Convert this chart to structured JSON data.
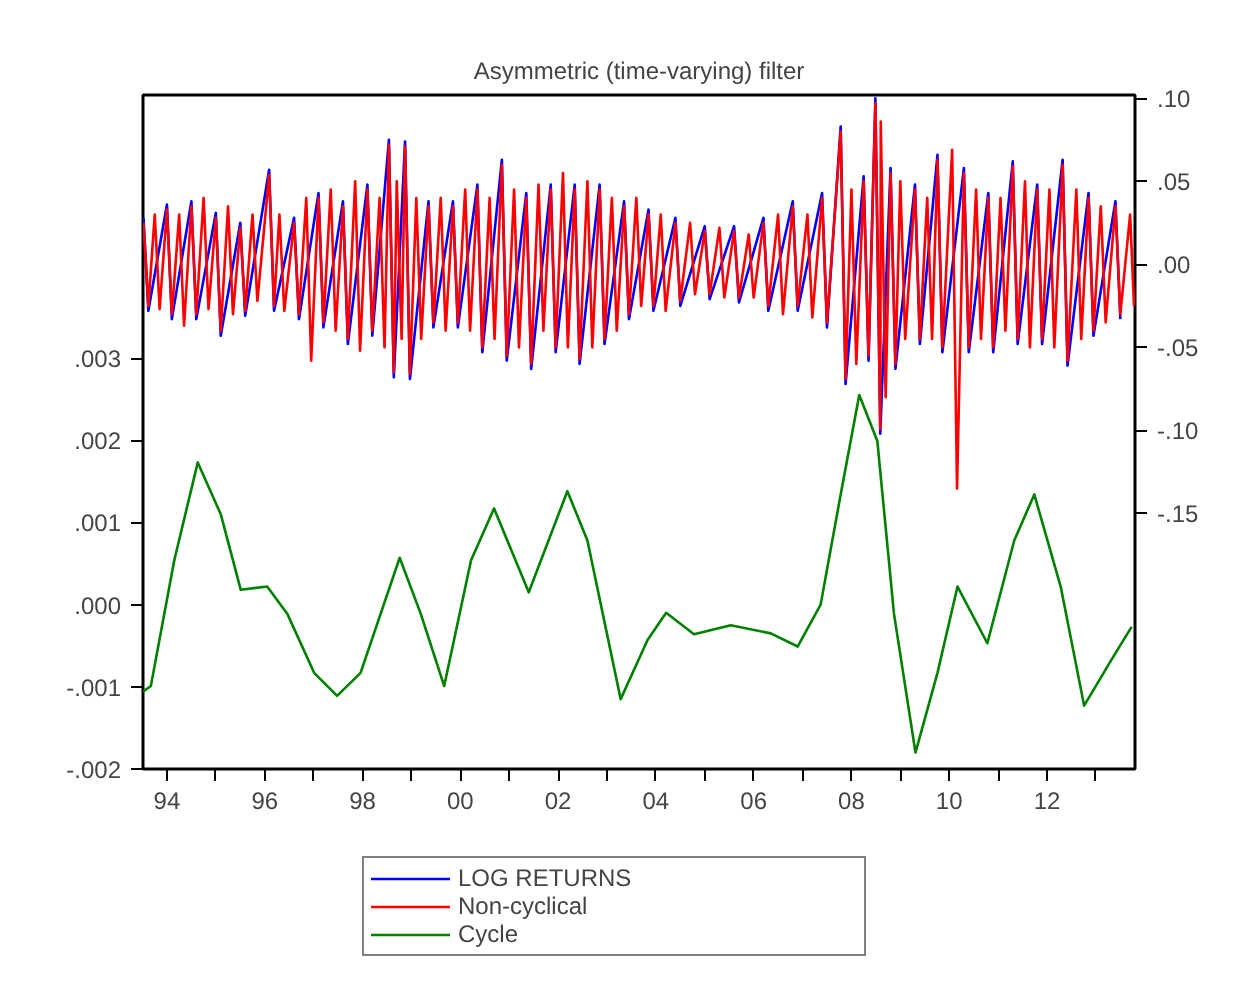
{
  "chart_data": {
    "type": "line",
    "title": "Asymmetric (time-varying) filter",
    "xlim": [
      1993.51,
      2013.8
    ],
    "xticks": [
      {
        "value": 1994,
        "label": "94"
      },
      {
        "value": 1995,
        "label": null
      },
      {
        "value": 1996,
        "label": "96"
      },
      {
        "value": 1997,
        "label": null
      },
      {
        "value": 1998,
        "label": "98"
      },
      {
        "value": 1999,
        "label": null
      },
      {
        "value": 2000,
        "label": "00"
      },
      {
        "value": 2001,
        "label": null
      },
      {
        "value": 2002,
        "label": "02"
      },
      {
        "value": 2003,
        "label": null
      },
      {
        "value": 2004,
        "label": "04"
      },
      {
        "value": 2005,
        "label": null
      },
      {
        "value": 2006,
        "label": "06"
      },
      {
        "value": 2007,
        "label": null
      },
      {
        "value": 2008,
        "label": "08"
      },
      {
        "value": 2009,
        "label": null
      },
      {
        "value": 2010,
        "label": "10"
      },
      {
        "value": 2011,
        "label": null
      },
      {
        "value": 2012,
        "label": "12"
      },
      {
        "value": 2013,
        "label": null
      }
    ],
    "ylim": [
      -0.002,
      0.0062
    ],
    "yticks": [
      {
        "value": 0.003,
        "label": ".003"
      },
      {
        "value": 0.002,
        "label": ".002"
      },
      {
        "value": 0.001,
        "label": ".001"
      },
      {
        "value": 0,
        "label": ".000"
      },
      {
        "value": -0.001,
        "label": "-.001"
      },
      {
        "value": -0.002,
        "label": "-.002"
      }
    ],
    "y2lim": [
      -0.304,
      0.102
    ],
    "y2ticks": [
      {
        "value": 0.1,
        "label": ".10"
      },
      {
        "value": 0.05,
        "label": ".05"
      },
      {
        "value": 0,
        "label": ".00"
      },
      {
        "value": -0.05,
        "label": "-.05"
      },
      {
        "value": -0.1,
        "label": "-.10"
      },
      {
        "value": -0.15,
        "label": "-.15"
      }
    ],
    "grid": false,
    "legend": "bottom",
    "line_style": "solid",
    "series": [
      {
        "name": "LOG RETURNS",
        "color": "#0000ff",
        "axis": "y2",
        "x": [
          1993.52,
          1993.62,
          1994.0,
          1994.1,
          1994.5,
          1994.6,
          1995.0,
          1995.1,
          1995.5,
          1995.6,
          1996.09,
          1996.19,
          1996.6,
          1996.7,
          1997.1,
          1997.2,
          1997.6,
          1997.7,
          1998.1,
          1998.2,
          1998.54,
          1998.64,
          1998.87,
          1998.97,
          1999.35,
          1999.45,
          1999.85,
          1999.95,
          2000.35,
          2000.45,
          2000.85,
          2000.95,
          2001.35,
          2001.45,
          2001.85,
          2001.95,
          2002.34,
          2002.44,
          2002.85,
          2002.95,
          2003.35,
          2003.45,
          2003.85,
          2003.95,
          2004.4,
          2004.5,
          2005.0,
          2005.1,
          2005.6,
          2005.7,
          2006.2,
          2006.3,
          2006.8,
          2006.9,
          2007.4,
          2007.5,
          2007.78,
          2007.88,
          2008.25,
          2008.35,
          2008.49,
          2008.59,
          2008.8,
          2008.9,
          2009.3,
          2009.4,
          2009.76,
          2009.86,
          2010.3,
          2010.4,
          2010.8,
          2010.9,
          2011.3,
          2011.4,
          2011.8,
          2011.9,
          2012.32,
          2012.42,
          2012.85,
          2012.95,
          2013.4,
          2013.5
        ],
        "values": [
          0.028,
          -0.028,
          0.036,
          -0.033,
          0.038,
          -0.033,
          0.031,
          -0.043,
          0.025,
          -0.031,
          0.057,
          -0.028,
          0.028,
          -0.033,
          0.043,
          -0.038,
          0.038,
          -0.048,
          0.048,
          -0.043,
          0.075,
          -0.068,
          0.074,
          -0.069,
          0.038,
          -0.038,
          0.038,
          -0.038,
          0.048,
          -0.053,
          0.063,
          -0.058,
          0.043,
          -0.063,
          0.048,
          -0.053,
          0.048,
          -0.06,
          0.048,
          -0.048,
          0.038,
          -0.033,
          0.033,
          -0.028,
          0.028,
          -0.025,
          0.023,
          -0.021,
          0.023,
          -0.023,
          0.028,
          -0.028,
          0.038,
          -0.028,
          0.043,
          -0.038,
          0.083,
          -0.072,
          0.053,
          -0.058,
          0.1,
          -0.102,
          0.058,
          -0.063,
          0.048,
          -0.048,
          0.066,
          -0.053,
          0.058,
          -0.053,
          0.043,
          -0.053,
          0.062,
          -0.048,
          0.048,
          -0.048,
          0.063,
          -0.061,
          0.043,
          -0.043,
          0.038,
          -0.033
        ]
      },
      {
        "name": "Non-cyclical",
        "color": "#ff0000",
        "axis": "y2",
        "x": [
          1993.52,
          1993.62,
          1993.75,
          1993.85,
          1994.0,
          1994.1,
          1994.25,
          1994.35,
          1994.5,
          1994.6,
          1994.75,
          1994.85,
          1995.0,
          1995.1,
          1995.25,
          1995.35,
          1995.5,
          1995.6,
          1995.75,
          1995.85,
          1996.09,
          1996.19,
          1996.3,
          1996.4,
          1996.6,
          1996.7,
          1996.85,
          1996.95,
          1997.1,
          1997.2,
          1997.35,
          1997.45,
          1997.6,
          1997.7,
          1997.85,
          1997.95,
          1998.1,
          1998.2,
          1998.35,
          1998.45,
          1998.54,
          1998.64,
          1998.7,
          1998.8,
          1998.87,
          1998.97,
          1999.1,
          1999.2,
          1999.35,
          1999.45,
          1999.6,
          1999.7,
          1999.85,
          1999.95,
          2000.1,
          2000.2,
          2000.35,
          2000.45,
          2000.6,
          2000.7,
          2000.85,
          2000.95,
          2001.1,
          2001.2,
          2001.35,
          2001.45,
          2001.6,
          2001.7,
          2001.85,
          2001.95,
          2002.1,
          2002.2,
          2002.34,
          2002.44,
          2002.6,
          2002.7,
          2002.85,
          2002.95,
          2003.1,
          2003.2,
          2003.35,
          2003.45,
          2003.6,
          2003.7,
          2003.85,
          2003.95,
          2004.1,
          2004.2,
          2004.4,
          2004.5,
          2004.7,
          2004.8,
          2005.0,
          2005.1,
          2005.3,
          2005.4,
          2005.6,
          2005.7,
          2005.9,
          2006.0,
          2006.2,
          2006.3,
          2006.5,
          2006.6,
          2006.8,
          2006.9,
          2007.1,
          2007.2,
          2007.4,
          2007.5,
          2007.78,
          2007.88,
          2008.0,
          2008.1,
          2008.25,
          2008.35,
          2008.49,
          2008.59,
          2008.6,
          2008.7,
          2008.8,
          2008.9,
          2009.0,
          2009.1,
          2009.3,
          2009.4,
          2009.55,
          2009.65,
          2009.76,
          2009.86,
          2010.06,
          2010.16,
          2010.3,
          2010.4,
          2010.55,
          2010.65,
          2010.8,
          2010.9,
          2011.05,
          2011.15,
          2011.3,
          2011.4,
          2011.55,
          2011.65,
          2011.8,
          2011.9,
          2012.05,
          2012.15,
          2012.32,
          2012.42,
          2012.6,
          2012.7,
          2012.85,
          2012.95,
          2013.1,
          2013.2,
          2013.4,
          2013.5,
          2013.7,
          2013.78
        ],
        "values": [
          0.025,
          -0.025,
          0.03,
          -0.027,
          0.033,
          -0.03,
          0.03,
          -0.037,
          0.035,
          -0.03,
          0.04,
          -0.027,
          0.028,
          -0.04,
          0.035,
          -0.03,
          0.022,
          -0.028,
          0.03,
          -0.022,
          0.054,
          -0.025,
          0.03,
          -0.028,
          0.025,
          -0.03,
          0.04,
          -0.058,
          0.04,
          -0.035,
          0.045,
          -0.04,
          0.035,
          -0.045,
          0.05,
          -0.052,
          0.045,
          -0.04,
          0.04,
          -0.05,
          0.072,
          -0.065,
          0.05,
          -0.045,
          0.071,
          -0.066,
          0.04,
          -0.045,
          0.035,
          -0.035,
          0.04,
          -0.04,
          0.035,
          -0.035,
          0.045,
          -0.04,
          0.045,
          -0.05,
          0.04,
          -0.045,
          0.06,
          -0.055,
          0.045,
          -0.05,
          0.04,
          -0.06,
          0.048,
          -0.04,
          0.045,
          -0.05,
          0.055,
          -0.05,
          0.045,
          -0.057,
          0.05,
          -0.05,
          0.045,
          -0.045,
          0.04,
          -0.04,
          0.035,
          -0.03,
          0.04,
          -0.025,
          0.03,
          -0.025,
          0.03,
          -0.028,
          0.025,
          -0.022,
          0.025,
          -0.018,
          0.02,
          -0.018,
          0.022,
          -0.02,
          0.02,
          -0.02,
          0.018,
          -0.02,
          0.025,
          -0.025,
          0.03,
          -0.03,
          0.035,
          -0.025,
          0.03,
          -0.032,
          0.04,
          -0.035,
          0.08,
          -0.069,
          0.045,
          -0.06,
          0.05,
          -0.055,
          0.097,
          -0.099,
          0.086,
          -0.08,
          0.055,
          -0.06,
          0.05,
          -0.045,
          0.045,
          -0.045,
          0.04,
          -0.045,
          0.063,
          -0.05,
          0.069,
          -0.135,
          0.055,
          -0.05,
          0.045,
          -0.045,
          0.04,
          -0.05,
          0.04,
          -0.04,
          0.059,
          -0.045,
          0.05,
          -0.05,
          0.045,
          -0.045,
          0.045,
          -0.05,
          0.06,
          -0.058,
          0.045,
          -0.045,
          0.04,
          -0.04,
          0.035,
          -0.035,
          0.035,
          -0.03,
          0.03,
          -0.025
        ]
      },
      {
        "name": "Cycle",
        "color": "#008000",
        "x": [
          1993.51,
          1993.67,
          1994.15,
          1994.63,
          1995.1,
          1995.51,
          1996.05,
          1996.46,
          1997.01,
          1997.48,
          1997.96,
          1998.76,
          1999.19,
          1999.67,
          2000.22,
          2000.69,
          2001.4,
          2002.19,
          2002.6,
          2003.28,
          2003.83,
          2004.21,
          2004.78,
          2005.53,
          2006.35,
          2006.9,
          2007.37,
          2007.78,
          2008.16,
          2008.53,
          2008.87,
          2009.31,
          2009.76,
          2010.17,
          2010.78,
          2011.33,
          2011.74,
          2012.28,
          2012.76,
          2013.32,
          2013.73
        ],
        "values": [
          -0.00106,
          -0.00099,
          0.00054,
          0.00173,
          0.0011,
          0.00018,
          0.00022,
          -0.00011,
          -0.00083,
          -0.00111,
          -0.00083,
          0.00057,
          -0.00011,
          -0.00099,
          0.00054,
          0.00117,
          0.00015,
          0.00138,
          0.00078,
          -0.00115,
          -0.00043,
          -0.0001,
          -0.00036,
          -0.00025,
          -0.00035,
          -0.00051,
          0,
          0.00134,
          0.00255,
          0.00199,
          -0.00011,
          -0.0018,
          -0.00083,
          0.00022,
          -0.00047,
          0.00078,
          0.00134,
          0.00022,
          -0.00123,
          -0.00067,
          -0.00027
        ]
      }
    ]
  }
}
